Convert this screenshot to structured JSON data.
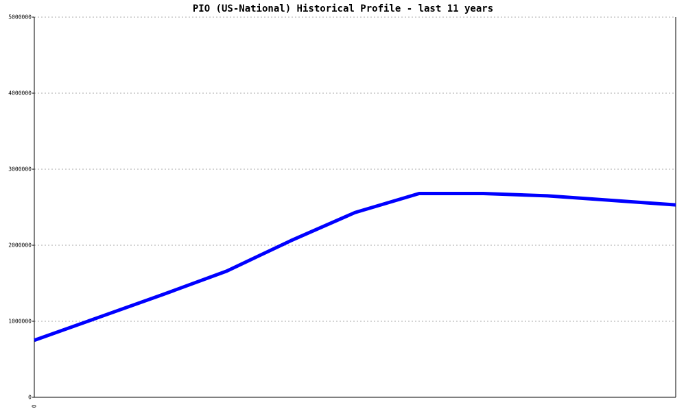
{
  "chart_data": {
    "type": "line",
    "title": "PIO (US-National) Historical Profile - last 11 years",
    "categories": [
      "0",
      null,
      null,
      null,
      null,
      null,
      null,
      null,
      null,
      null,
      null
    ],
    "series": [
      {
        "color": "#0000ff",
        "values": [
          750000,
          1050000,
          1350000,
          1660000,
          2060000,
          2430000,
          2680000,
          2680000,
          2650000,
          2590000,
          2530000
        ]
      }
    ],
    "ylim": [
      0,
      5000000
    ],
    "yticks": [
      0,
      1000000,
      2000000,
      3000000,
      4000000,
      5000000
    ],
    "grid": true
  }
}
